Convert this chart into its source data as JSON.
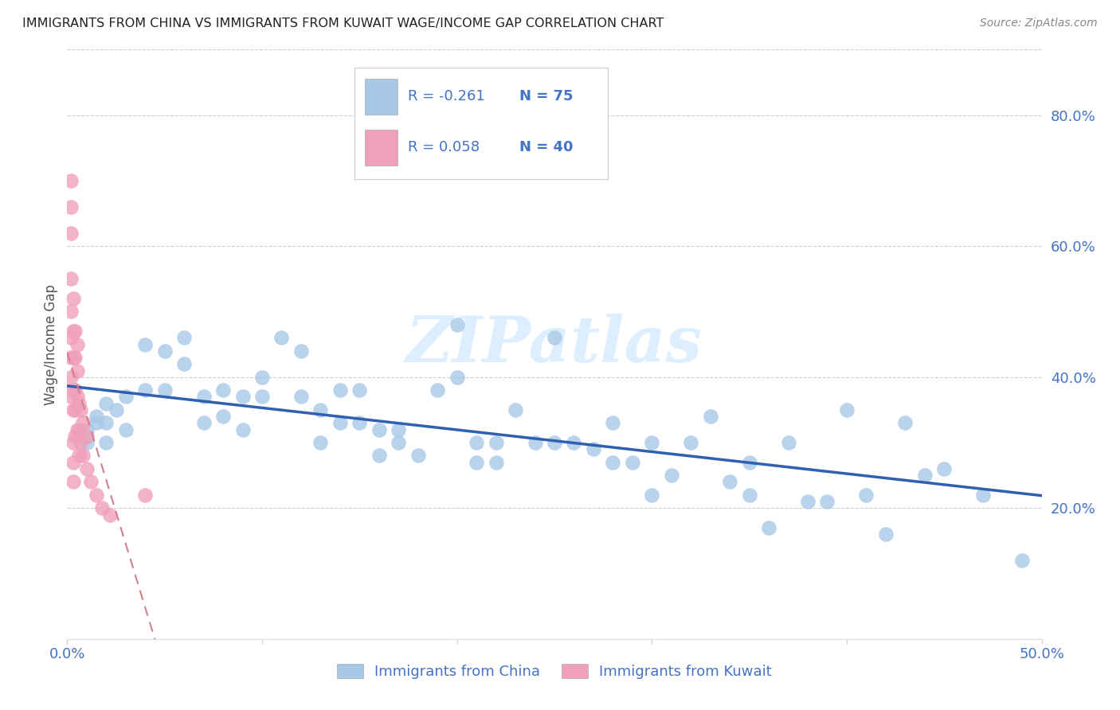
{
  "title": "IMMIGRANTS FROM CHINA VS IMMIGRANTS FROM KUWAIT WAGE/INCOME GAP CORRELATION CHART",
  "source": "Source: ZipAtlas.com",
  "ylabel": "Wage/Income Gap",
  "xlim": [
    0.0,
    0.5
  ],
  "ylim": [
    0.0,
    0.9
  ],
  "legend_china_R": "-0.261",
  "legend_china_N": "75",
  "legend_kuwait_R": "0.058",
  "legend_kuwait_N": "40",
  "china_color": "#a8c8e8",
  "kuwait_color": "#f0a0b8",
  "china_line_color": "#3060b0",
  "kuwait_line_color": "#d08090",
  "watermark_text": "ZIPatlas",
  "watermark_color": "#ddeeff",
  "china_scatter_x": [
    0.005,
    0.01,
    0.01,
    0.015,
    0.015,
    0.02,
    0.02,
    0.02,
    0.025,
    0.03,
    0.03,
    0.04,
    0.04,
    0.05,
    0.05,
    0.06,
    0.06,
    0.07,
    0.07,
    0.08,
    0.08,
    0.09,
    0.09,
    0.1,
    0.1,
    0.11,
    0.12,
    0.12,
    0.13,
    0.13,
    0.14,
    0.14,
    0.15,
    0.15,
    0.16,
    0.16,
    0.17,
    0.17,
    0.18,
    0.19,
    0.2,
    0.2,
    0.21,
    0.21,
    0.22,
    0.22,
    0.23,
    0.24,
    0.25,
    0.25,
    0.26,
    0.27,
    0.28,
    0.28,
    0.29,
    0.3,
    0.3,
    0.31,
    0.32,
    0.33,
    0.34,
    0.35,
    0.35,
    0.36,
    0.37,
    0.38,
    0.39,
    0.4,
    0.41,
    0.42,
    0.43,
    0.44,
    0.45,
    0.47,
    0.49
  ],
  "china_scatter_y": [
    0.31,
    0.32,
    0.3,
    0.34,
    0.33,
    0.36,
    0.33,
    0.3,
    0.35,
    0.37,
    0.32,
    0.45,
    0.38,
    0.44,
    0.38,
    0.46,
    0.42,
    0.37,
    0.33,
    0.38,
    0.34,
    0.37,
    0.32,
    0.4,
    0.37,
    0.46,
    0.44,
    0.37,
    0.35,
    0.3,
    0.38,
    0.33,
    0.38,
    0.33,
    0.32,
    0.28,
    0.32,
    0.3,
    0.28,
    0.38,
    0.48,
    0.4,
    0.3,
    0.27,
    0.3,
    0.27,
    0.35,
    0.3,
    0.46,
    0.3,
    0.3,
    0.29,
    0.33,
    0.27,
    0.27,
    0.22,
    0.3,
    0.25,
    0.3,
    0.34,
    0.24,
    0.27,
    0.22,
    0.17,
    0.3,
    0.21,
    0.21,
    0.35,
    0.22,
    0.16,
    0.33,
    0.25,
    0.26,
    0.22,
    0.12
  ],
  "kuwait_scatter_x": [
    0.002,
    0.002,
    0.002,
    0.002,
    0.002,
    0.002,
    0.002,
    0.002,
    0.002,
    0.003,
    0.003,
    0.003,
    0.003,
    0.003,
    0.003,
    0.003,
    0.003,
    0.004,
    0.004,
    0.004,
    0.004,
    0.004,
    0.005,
    0.005,
    0.005,
    0.005,
    0.006,
    0.006,
    0.006,
    0.007,
    0.007,
    0.008,
    0.008,
    0.01,
    0.01,
    0.012,
    0.015,
    0.018,
    0.022,
    0.04
  ],
  "kuwait_scatter_y": [
    0.7,
    0.66,
    0.62,
    0.55,
    0.5,
    0.46,
    0.43,
    0.4,
    0.37,
    0.52,
    0.47,
    0.43,
    0.38,
    0.35,
    0.3,
    0.27,
    0.24,
    0.47,
    0.43,
    0.38,
    0.35,
    0.31,
    0.45,
    0.41,
    0.37,
    0.32,
    0.36,
    0.32,
    0.28,
    0.35,
    0.3,
    0.33,
    0.28,
    0.31,
    0.26,
    0.24,
    0.22,
    0.2,
    0.19,
    0.22
  ],
  "background_color": "#ffffff",
  "grid_color": "#cccccc",
  "title_color": "#222222",
  "tick_label_color": "#4472c4"
}
